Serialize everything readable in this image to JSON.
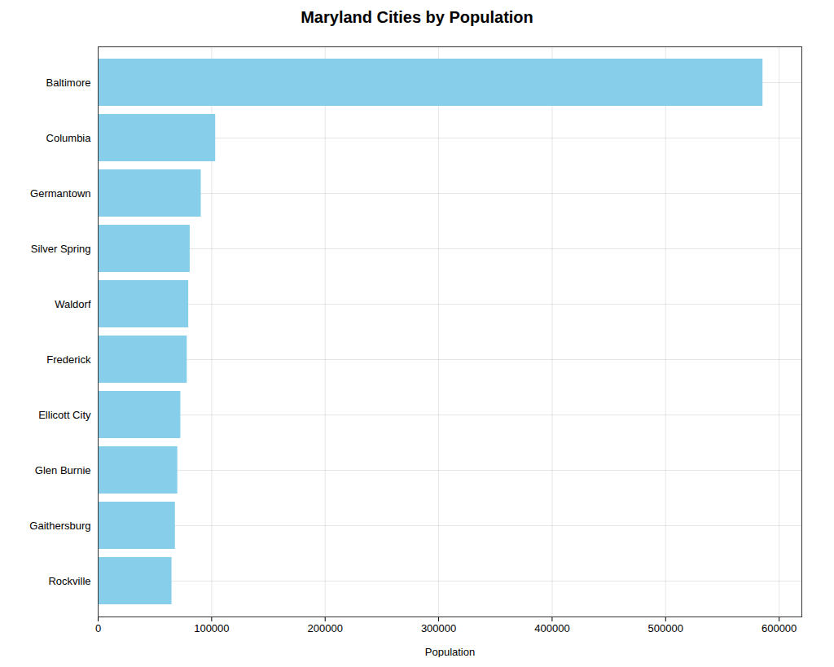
{
  "chart_data": {
    "type": "bar",
    "orientation": "horizontal",
    "title": "Maryland Cities by Population",
    "xlabel": "Population",
    "categories": [
      "Baltimore",
      "Columbia",
      "Germantown",
      "Silver Spring",
      "Waldorf",
      "Frederick",
      "Ellicott City",
      "Glen Burnie",
      "Gaithersburg",
      "Rockville"
    ],
    "values": [
      585708,
      103483,
      90752,
      81015,
      79737,
      78439,
      72762,
      70088,
      68000,
      65000
    ],
    "color": "#87CEEB",
    "xlim": [
      0,
      620000
    ],
    "xticks": [
      0,
      100000,
      200000,
      300000,
      400000,
      500000,
      600000
    ],
    "grid": true
  }
}
